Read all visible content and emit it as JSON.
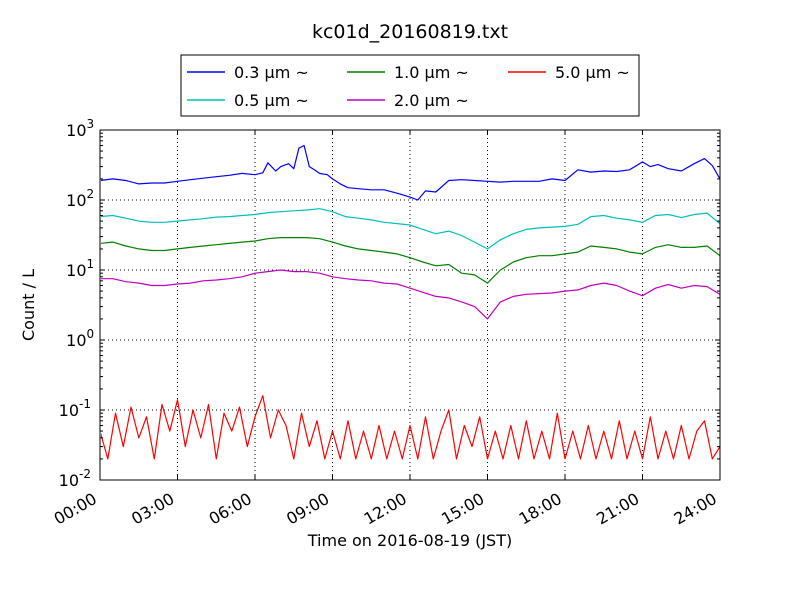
{
  "chart_data": {
    "type": "line",
    "title": "kc01d_20160819.txt",
    "xlabel": "Time on 2016-08-19 (JST)",
    "ylabel": "Count / L",
    "x_ticks": [
      "00:00",
      "03:00",
      "06:00",
      "09:00",
      "12:00",
      "15:00",
      "18:00",
      "21:00",
      "24:00"
    ],
    "x_unit": "hours",
    "xlim": [
      0,
      24
    ],
    "y_scale": "log",
    "ylim": [
      0.01,
      1000
    ],
    "y_ticks": [
      {
        "value": 1000,
        "base": "10",
        "exp": "3"
      },
      {
        "value": 100,
        "base": "10",
        "exp": "2"
      },
      {
        "value": 10,
        "base": "10",
        "exp": "1"
      },
      {
        "value": 1,
        "base": "10",
        "exp": "0"
      },
      {
        "value": 0.1,
        "base": "10",
        "exp": "-1"
      },
      {
        "value": 0.01,
        "base": "10",
        "exp": "-2"
      }
    ],
    "grid": true,
    "legend_position": "top-center",
    "series": [
      {
        "name": "0.3 μm ~",
        "color": "#0000ff",
        "x": [
          0,
          0.5,
          1,
          1.5,
          2,
          2.5,
          3,
          3.5,
          4,
          4.5,
          5,
          5.5,
          6,
          6.3,
          6.5,
          6.8,
          7,
          7.3,
          7.5,
          7.7,
          7.9,
          8.1,
          8.3,
          8.5,
          8.8,
          9,
          9.3,
          9.6,
          10,
          10.5,
          11,
          11.5,
          12,
          12.3,
          12.6,
          13,
          13.5,
          14,
          14.5,
          15,
          15.5,
          16,
          16.5,
          17,
          17.5,
          18,
          18.5,
          19,
          19.5,
          20,
          20.5,
          21,
          21.3,
          21.6,
          22,
          22.5,
          23,
          23.4,
          23.7,
          24
        ],
        "y": [
          190,
          200,
          190,
          170,
          175,
          175,
          185,
          195,
          205,
          215,
          225,
          240,
          230,
          245,
          340,
          260,
          300,
          330,
          280,
          550,
          600,
          300,
          270,
          240,
          230,
          200,
          170,
          150,
          145,
          140,
          140,
          125,
          110,
          100,
          135,
          130,
          190,
          195,
          190,
          185,
          180,
          185,
          185,
          185,
          200,
          190,
          270,
          250,
          260,
          255,
          270,
          350,
          300,
          320,
          280,
          260,
          330,
          390,
          310,
          200
        ]
      },
      {
        "name": "0.5 μm ~",
        "color": "#00bfbf",
        "x": [
          0,
          0.5,
          1,
          1.5,
          2,
          2.5,
          3,
          3.5,
          4,
          4.5,
          5,
          5.5,
          6,
          6.5,
          7,
          7.5,
          8,
          8.5,
          9,
          9.5,
          10,
          10.5,
          11,
          11.5,
          12,
          12.5,
          13,
          13.5,
          14,
          14.5,
          15,
          15.5,
          16,
          16.5,
          17,
          17.5,
          18,
          18.5,
          19,
          19.5,
          20,
          20.5,
          21,
          21.5,
          22,
          22.5,
          23,
          23.5,
          24
        ],
        "y": [
          58,
          60,
          55,
          50,
          48,
          48,
          50,
          52,
          54,
          57,
          58,
          60,
          62,
          66,
          68,
          70,
          72,
          75,
          68,
          58,
          55,
          52,
          48,
          46,
          44,
          38,
          33,
          36,
          31,
          25,
          20,
          27,
          33,
          38,
          40,
          41,
          42,
          45,
          58,
          60,
          55,
          52,
          48,
          60,
          62,
          56,
          62,
          65,
          46
        ]
      },
      {
        "name": "1.0 μm ~",
        "color": "#008000",
        "x": [
          0,
          0.5,
          1,
          1.5,
          2,
          2.5,
          3,
          3.5,
          4,
          4.5,
          5,
          5.5,
          6,
          6.5,
          7,
          7.5,
          8,
          8.5,
          9,
          9.5,
          10,
          10.5,
          11,
          11.5,
          12,
          12.5,
          13,
          13.5,
          14,
          14.5,
          15,
          15.5,
          16,
          16.5,
          17,
          17.5,
          18,
          18.5,
          19,
          19.5,
          20,
          20.5,
          21,
          21.5,
          22,
          22.5,
          23,
          23.5,
          24
        ],
        "y": [
          24,
          25,
          22,
          20,
          19,
          19,
          20,
          21,
          22,
          23,
          24,
          25,
          26,
          28,
          29,
          29,
          29,
          28,
          25,
          22,
          20,
          19,
          18,
          17,
          15,
          13,
          11.5,
          12,
          9,
          8.5,
          6.5,
          10,
          13,
          15,
          16,
          16,
          17,
          18,
          22,
          21,
          20,
          18,
          17,
          21,
          23,
          21,
          21,
          22,
          16
        ]
      },
      {
        "name": "2.0 μm ~",
        "color": "#bf00bf",
        "x": [
          0,
          0.5,
          1,
          1.5,
          2,
          2.5,
          3,
          3.5,
          4,
          4.5,
          5,
          5.5,
          6,
          6.5,
          7,
          7.5,
          8,
          8.5,
          9,
          9.5,
          10,
          10.5,
          11,
          11.5,
          12,
          12.5,
          13,
          13.5,
          14,
          14.5,
          15,
          15.5,
          16,
          16.5,
          17,
          17.5,
          18,
          18.5,
          19,
          19.5,
          20,
          20.5,
          21,
          21.5,
          22,
          22.5,
          23,
          23.5,
          24
        ],
        "y": [
          7.5,
          7.5,
          6.8,
          6.5,
          6,
          6,
          6.3,
          6.5,
          7,
          7.2,
          7.5,
          8,
          9,
          9.5,
          10,
          9.5,
          9.5,
          9,
          8,
          7.5,
          7.2,
          7,
          6.5,
          6.3,
          5.5,
          4.8,
          4.2,
          4,
          3.5,
          3,
          2,
          3.5,
          4.2,
          4.5,
          4.6,
          4.7,
          5,
          5.2,
          6,
          6.5,
          6,
          5,
          4.3,
          5.5,
          6.2,
          5.5,
          6,
          5.8,
          4.5
        ]
      },
      {
        "name": "5.0 μm ~",
        "color": "#ff0000",
        "x": [
          0,
          0.3,
          0.6,
          0.9,
          1.2,
          1.5,
          1.8,
          2.1,
          2.4,
          2.7,
          3,
          3.3,
          3.6,
          3.9,
          4.2,
          4.5,
          4.8,
          5.1,
          5.4,
          5.7,
          6,
          6.3,
          6.6,
          6.9,
          7.2,
          7.5,
          7.8,
          8.1,
          8.4,
          8.7,
          9,
          9.3,
          9.6,
          9.9,
          10.2,
          10.5,
          10.8,
          11.1,
          11.4,
          11.7,
          12,
          12.3,
          12.6,
          12.9,
          13.2,
          13.5,
          13.8,
          14.1,
          14.4,
          14.7,
          15,
          15.3,
          15.6,
          15.9,
          16.2,
          16.5,
          16.8,
          17.1,
          17.4,
          17.7,
          18,
          18.3,
          18.6,
          18.9,
          19.2,
          19.5,
          19.8,
          20.1,
          20.4,
          20.7,
          21,
          21.3,
          21.6,
          21.9,
          22.2,
          22.5,
          22.8,
          23.1,
          23.4,
          23.7,
          24
        ],
        "y": [
          0.05,
          0.02,
          0.09,
          0.03,
          0.11,
          0.04,
          0.08,
          0.02,
          0.12,
          0.05,
          0.14,
          0.03,
          0.1,
          0.04,
          0.12,
          0.02,
          0.09,
          0.05,
          0.11,
          0.03,
          0.08,
          0.16,
          0.04,
          0.1,
          0.06,
          0.02,
          0.09,
          0.03,
          0.07,
          0.02,
          0.05,
          0.02,
          0.07,
          0.02,
          0.05,
          0.02,
          0.06,
          0.02,
          0.05,
          0.02,
          0.06,
          0.02,
          0.08,
          0.02,
          0.05,
          0.1,
          0.02,
          0.06,
          0.03,
          0.08,
          0.02,
          0.05,
          0.02,
          0.06,
          0.02,
          0.07,
          0.02,
          0.05,
          0.02,
          0.09,
          0.02,
          0.05,
          0.02,
          0.06,
          0.02,
          0.05,
          0.02,
          0.07,
          0.02,
          0.05,
          0.02,
          0.08,
          0.02,
          0.05,
          0.02,
          0.06,
          0.02,
          0.05,
          0.07,
          0.02,
          0.03
        ]
      }
    ]
  }
}
